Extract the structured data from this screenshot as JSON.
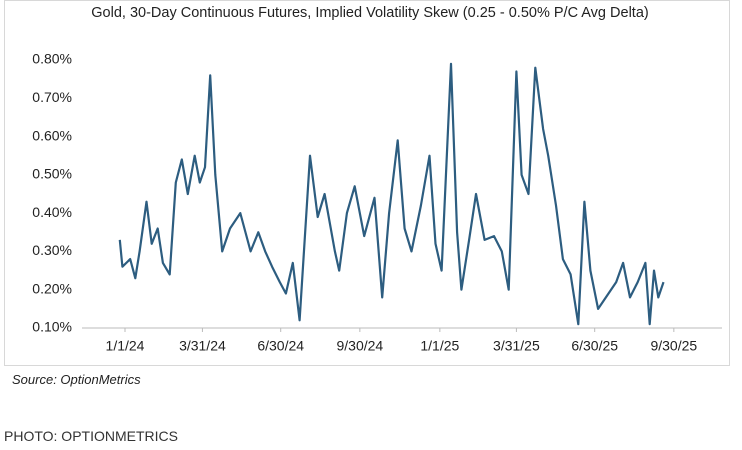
{
  "chart_data": {
    "type": "line",
    "title": "Gold, 30-Day Continuous Futures, Implied Volatility Skew (0.25 - 0.50% P/C Avg Delta)",
    "source": "Source: OptionMetrics",
    "x": [
      "2023-12-26",
      "2023-12-29",
      "2024-01-07",
      "2024-01-13",
      "2024-01-18",
      "2024-01-26",
      "2024-02-01",
      "2024-02-08",
      "2024-02-14",
      "2024-02-22",
      "2024-02-29",
      "2024-03-07",
      "2024-03-14",
      "2024-03-22",
      "2024-03-28",
      "2024-04-03",
      "2024-04-09",
      "2024-04-15",
      "2024-04-23",
      "2024-05-02",
      "2024-05-14",
      "2024-05-26",
      "2024-06-04",
      "2024-06-12",
      "2024-06-20",
      "2024-06-29",
      "2024-07-06",
      "2024-07-14",
      "2024-07-22",
      "2024-08-03",
      "2024-08-12",
      "2024-08-20",
      "2024-09-01",
      "2024-09-06",
      "2024-09-15",
      "2024-09-24",
      "2024-10-05",
      "2024-10-17",
      "2024-10-26",
      "2024-11-03",
      "2024-11-13",
      "2024-11-21",
      "2024-11-29",
      "2024-12-10",
      "2024-12-20",
      "2024-12-27",
      "2025-01-03",
      "2025-01-14",
      "2025-01-21",
      "2025-01-26",
      "2025-02-04",
      "2025-02-12",
      "2025-02-22",
      "2025-03-05",
      "2025-03-14",
      "2025-03-22",
      "2025-03-31",
      "2025-04-06",
      "2025-04-14",
      "2025-04-22",
      "2025-05-01",
      "2025-05-07",
      "2025-05-16",
      "2025-05-24",
      "2025-06-02",
      "2025-06-11",
      "2025-06-18",
      "2025-06-25",
      "2025-07-04",
      "2025-07-16",
      "2025-07-25",
      "2025-08-02",
      "2025-08-10",
      "2025-08-19",
      "2025-08-28",
      "2025-09-02",
      "2025-09-07",
      "2025-09-12",
      "2025-09-18"
    ],
    "series": [
      {
        "color": "#2d5d80",
        "values": [
          0.33,
          0.26,
          0.28,
          0.23,
          0.3,
          0.43,
          0.32,
          0.36,
          0.27,
          0.24,
          0.48,
          0.54,
          0.45,
          0.55,
          0.48,
          0.52,
          0.76,
          0.5,
          0.3,
          0.36,
          0.4,
          0.3,
          0.35,
          0.3,
          0.26,
          0.22,
          0.19,
          0.27,
          0.12,
          0.55,
          0.39,
          0.45,
          0.3,
          0.25,
          0.4,
          0.47,
          0.34,
          0.44,
          0.18,
          0.4,
          0.59,
          0.36,
          0.3,
          0.42,
          0.55,
          0.32,
          0.25,
          0.79,
          0.35,
          0.2,
          0.33,
          0.45,
          0.33,
          0.34,
          0.3,
          0.2,
          0.77,
          0.5,
          0.45,
          0.78,
          0.62,
          0.55,
          0.42,
          0.28,
          0.24,
          0.11,
          0.43,
          0.25,
          0.15,
          0.19,
          0.22,
          0.27,
          0.18,
          0.22,
          0.27,
          0.11,
          0.25,
          0.18,
          0.22
        ]
      }
    ],
    "xlim": [
      "2023-11-12",
      "2025-11-25"
    ],
    "xticks": [
      {
        "value": "2024-01-01",
        "label": "1/1/24"
      },
      {
        "value": "2024-03-31",
        "label": "3/31/24"
      },
      {
        "value": "2024-06-30",
        "label": "6/30/24"
      },
      {
        "value": "2024-09-30",
        "label": "9/30/24"
      },
      {
        "value": "2025-01-01",
        "label": "1/1/25"
      },
      {
        "value": "2025-03-31",
        "label": "3/31/25"
      },
      {
        "value": "2025-06-30",
        "label": "6/30/25"
      },
      {
        "value": "2025-09-30",
        "label": "9/30/25"
      }
    ],
    "ylim": [
      0.1,
      0.8
    ],
    "yticks": [
      {
        "value": 0.1,
        "label": "0.10%"
      },
      {
        "value": 0.2,
        "label": "0.20%"
      },
      {
        "value": 0.3,
        "label": "0.30%"
      },
      {
        "value": 0.4,
        "label": "0.40%"
      },
      {
        "value": 0.5,
        "label": "0.50%"
      },
      {
        "value": 0.6,
        "label": "0.60%"
      },
      {
        "value": 0.7,
        "label": "0.70%"
      },
      {
        "value": 0.8,
        "label": "0.80%"
      }
    ],
    "grid": false
  },
  "caption": "PHOTO: OPTIONMETRICS"
}
